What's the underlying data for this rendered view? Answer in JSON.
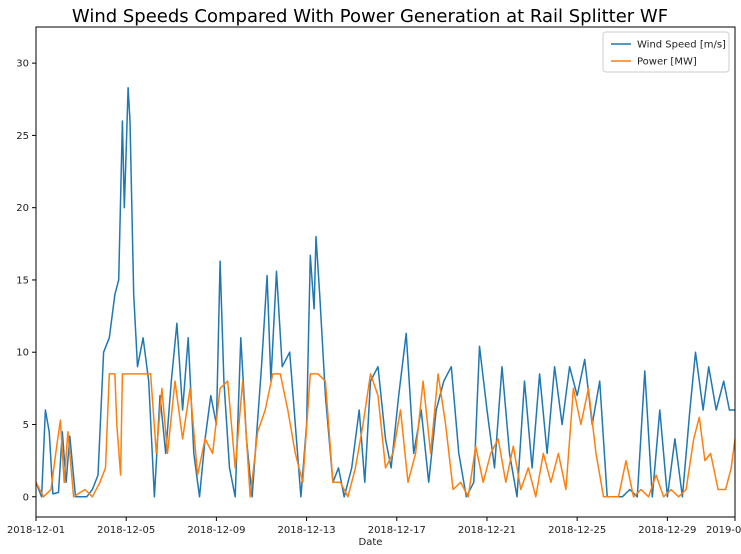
{
  "chart_data": {
    "type": "line",
    "title": "Wind Speeds Compared With Power Generation at Rail Splitter WF",
    "xlabel": "Date",
    "ylabel": "",
    "xlim": [
      "2018-12-01",
      "2019-01-01"
    ],
    "ylim": [
      -1.4,
      32.5
    ],
    "x_ticks": [
      "2018-12-01",
      "2018-12-05",
      "2018-12-09",
      "2018-12-13",
      "2018-12-17",
      "2018-12-21",
      "2018-12-25",
      "2018-12-29",
      "2019-01-01"
    ],
    "y_ticks": [
      0,
      5,
      10,
      15,
      20,
      25,
      30
    ],
    "grid": false,
    "legend": "top-right",
    "colors": {
      "wind": "#1f77b4",
      "power": "#ff7f0e"
    },
    "series": [
      {
        "name": "Wind Speed [m/s]",
        "color": "#1f77b4",
        "points": [
          [
            "2018-12-01 00:00",
            1.0
          ],
          [
            "2018-12-01 06:00",
            0.0
          ],
          [
            "2018-12-01 10:00",
            6.0
          ],
          [
            "2018-12-01 14:00",
            4.5
          ],
          [
            "2018-12-01 18:00",
            0.2
          ],
          [
            "2018-12-02 00:00",
            0.3
          ],
          [
            "2018-12-02 04:00",
            4.5
          ],
          [
            "2018-12-02 08:00",
            1.0
          ],
          [
            "2018-12-02 12:00",
            4.2
          ],
          [
            "2018-12-02 18:00",
            0.0
          ],
          [
            "2018-12-03 06:00",
            0.0
          ],
          [
            "2018-12-03 12:00",
            0.5
          ],
          [
            "2018-12-03 18:00",
            1.5
          ],
          [
            "2018-12-04 00:00",
            10.0
          ],
          [
            "2018-12-04 06:00",
            11.0
          ],
          [
            "2018-12-04 12:00",
            14.0
          ],
          [
            "2018-12-04 16:00",
            15.0
          ],
          [
            "2018-12-04 20:00",
            26.0
          ],
          [
            "2018-12-04 22:00",
            20.0
          ],
          [
            "2018-12-05 00:00",
            24.0
          ],
          [
            "2018-12-05 02:00",
            28.3
          ],
          [
            "2018-12-05 04:00",
            26.0
          ],
          [
            "2018-12-05 08:00",
            14.0
          ],
          [
            "2018-12-05 12:00",
            9.0
          ],
          [
            "2018-12-05 18:00",
            11.0
          ],
          [
            "2018-12-06 00:00",
            8.0
          ],
          [
            "2018-12-06 06:00",
            0.0
          ],
          [
            "2018-12-06 12:00",
            7.0
          ],
          [
            "2018-12-06 18:00",
            3.0
          ],
          [
            "2018-12-07 00:00",
            8.0
          ],
          [
            "2018-12-07 06:00",
            12.0
          ],
          [
            "2018-12-07 12:00",
            6.0
          ],
          [
            "2018-12-07 18:00",
            11.0
          ],
          [
            "2018-12-08 00:00",
            3.0
          ],
          [
            "2018-12-08 06:00",
            0.0
          ],
          [
            "2018-12-08 12:00",
            4.0
          ],
          [
            "2018-12-08 18:00",
            7.0
          ],
          [
            "2018-12-09 00:00",
            5.0
          ],
          [
            "2018-12-09 04:00",
            16.3
          ],
          [
            "2018-12-09 08:00",
            8.0
          ],
          [
            "2018-12-09 14:00",
            2.0
          ],
          [
            "2018-12-09 20:00",
            0.0
          ],
          [
            "2018-12-10 02:00",
            11.0
          ],
          [
            "2018-12-10 08:00",
            4.0
          ],
          [
            "2018-12-10 14:00",
            0.0
          ],
          [
            "2018-12-11 00:00",
            9.0
          ],
          [
            "2018-12-11 06:00",
            15.3
          ],
          [
            "2018-12-11 10:00",
            8.0
          ],
          [
            "2018-12-11 16:00",
            15.6
          ],
          [
            "2018-12-11 22:00",
            9.0
          ],
          [
            "2018-12-12 06:00",
            10.0
          ],
          [
            "2018-12-12 12:00",
            5.0
          ],
          [
            "2018-12-12 18:00",
            0.0
          ],
          [
            "2018-12-13 00:00",
            5.0
          ],
          [
            "2018-12-13 04:00",
            16.7
          ],
          [
            "2018-12-13 08:00",
            13.0
          ],
          [
            "2018-12-13 10:00",
            18.0
          ],
          [
            "2018-12-13 14:00",
            14.0
          ],
          [
            "2018-12-13 20:00",
            7.0
          ],
          [
            "2018-12-14 04:00",
            1.0
          ],
          [
            "2018-12-14 10:00",
            2.0
          ],
          [
            "2018-12-14 16:00",
            0.0
          ],
          [
            "2018-12-15 00:00",
            2.0
          ],
          [
            "2018-12-15 08:00",
            6.0
          ],
          [
            "2018-12-15 14:00",
            1.0
          ],
          [
            "2018-12-15 20:00",
            8.0
          ],
          [
            "2018-12-16 04:00",
            9.0
          ],
          [
            "2018-12-16 12:00",
            4.0
          ],
          [
            "2018-12-16 18:00",
            2.0
          ],
          [
            "2018-12-17 02:00",
            7.0
          ],
          [
            "2018-12-17 10:00",
            11.3
          ],
          [
            "2018-12-17 18:00",
            3.0
          ],
          [
            "2018-12-18 02:00",
            6.0
          ],
          [
            "2018-12-18 10:00",
            1.0
          ],
          [
            "2018-12-18 18:00",
            6.0
          ],
          [
            "2018-12-19 02:00",
            8.0
          ],
          [
            "2018-12-19 10:00",
            9.0
          ],
          [
            "2018-12-19 18:00",
            3.0
          ],
          [
            "2018-12-20 02:00",
            0.0
          ],
          [
            "2018-12-20 10:00",
            1.0
          ],
          [
            "2018-12-20 16:00",
            10.4
          ],
          [
            "2018-12-21 00:00",
            6.0
          ],
          [
            "2018-12-21 08:00",
            2.0
          ],
          [
            "2018-12-21 16:00",
            9.0
          ],
          [
            "2018-12-22 00:00",
            3.0
          ],
          [
            "2018-12-22 08:00",
            0.0
          ],
          [
            "2018-12-22 16:00",
            8.0
          ],
          [
            "2018-12-23 00:00",
            2.0
          ],
          [
            "2018-12-23 08:00",
            8.5
          ],
          [
            "2018-12-23 16:00",
            3.0
          ],
          [
            "2018-12-24 00:00",
            9.0
          ],
          [
            "2018-12-24 08:00",
            5.0
          ],
          [
            "2018-12-24 16:00",
            9.0
          ],
          [
            "2018-12-25 00:00",
            7.0
          ],
          [
            "2018-12-25 08:00",
            9.5
          ],
          [
            "2018-12-25 16:00",
            5.0
          ],
          [
            "2018-12-26 00:00",
            8.0
          ],
          [
            "2018-12-26 08:00",
            0.0
          ],
          [
            "2018-12-26 16:00",
            0.0
          ],
          [
            "2018-12-27 00:00",
            0.0
          ],
          [
            "2018-12-27 08:00",
            0.5
          ],
          [
            "2018-12-27 16:00",
            0.0
          ],
          [
            "2018-12-28 00:00",
            8.7
          ],
          [
            "2018-12-28 08:00",
            0.0
          ],
          [
            "2018-12-28 16:00",
            6.0
          ],
          [
            "2018-12-29 00:00",
            0.0
          ],
          [
            "2018-12-29 08:00",
            4.0
          ],
          [
            "2018-12-29 16:00",
            0.0
          ],
          [
            "2018-12-30 00:00",
            6.0
          ],
          [
            "2018-12-30 06:00",
            10.0
          ],
          [
            "2018-12-30 14:00",
            6.0
          ],
          [
            "2018-12-30 20:00",
            9.0
          ],
          [
            "2018-12-31 04:00",
            6.0
          ],
          [
            "2018-12-31 12:00",
            8.0
          ],
          [
            "2018-12-31 18:00",
            6.0
          ],
          [
            "2019-01-01 00:00",
            6.0
          ]
        ]
      },
      {
        "name": "Power [MW]",
        "color": "#ff7f0e",
        "points": [
          [
            "2018-12-01 00:00",
            1.0
          ],
          [
            "2018-12-01 08:00",
            0.0
          ],
          [
            "2018-12-01 16:00",
            0.5
          ],
          [
            "2018-12-01 22:00",
            3.5
          ],
          [
            "2018-12-02 02:00",
            5.3
          ],
          [
            "2018-12-02 06:00",
            1.0
          ],
          [
            "2018-12-02 10:00",
            4.5
          ],
          [
            "2018-12-02 16:00",
            0.0
          ],
          [
            "2018-12-03 04:00",
            0.5
          ],
          [
            "2018-12-03 12:00",
            0.0
          ],
          [
            "2018-12-03 20:00",
            1.0
          ],
          [
            "2018-12-04 02:00",
            2.0
          ],
          [
            "2018-12-04 06:00",
            8.5
          ],
          [
            "2018-12-04 12:00",
            8.5
          ],
          [
            "2018-12-04 14:00",
            5.0
          ],
          [
            "2018-12-04 18:00",
            1.5
          ],
          [
            "2018-12-04 20:00",
            8.5
          ],
          [
            "2018-12-05 04:00",
            8.5
          ],
          [
            "2018-12-05 12:00",
            8.5
          ],
          [
            "2018-12-05 20:00",
            8.5
          ],
          [
            "2018-12-06 02:00",
            8.5
          ],
          [
            "2018-12-06 08:00",
            3.0
          ],
          [
            "2018-12-06 14:00",
            7.5
          ],
          [
            "2018-12-06 20:00",
            3.0
          ],
          [
            "2018-12-07 04:00",
            8.0
          ],
          [
            "2018-12-07 12:00",
            4.0
          ],
          [
            "2018-12-07 20:00",
            7.5
          ],
          [
            "2018-12-08 04:00",
            1.5
          ],
          [
            "2018-12-08 12:00",
            4.0
          ],
          [
            "2018-12-08 20:00",
            3.0
          ],
          [
            "2018-12-09 04:00",
            7.5
          ],
          [
            "2018-12-09 12:00",
            8.0
          ],
          [
            "2018-12-09 20:00",
            2.0
          ],
          [
            "2018-12-10 04:00",
            8.0
          ],
          [
            "2018-12-10 12:00",
            0.0
          ],
          [
            "2018-12-10 20:00",
            4.5
          ],
          [
            "2018-12-11 04:00",
            6.0
          ],
          [
            "2018-12-11 12:00",
            8.5
          ],
          [
            "2018-12-11 20:00",
            8.5
          ],
          [
            "2018-12-12 04:00",
            6.0
          ],
          [
            "2018-12-12 12:00",
            3.0
          ],
          [
            "2018-12-12 20:00",
            1.0
          ],
          [
            "2018-12-13 04:00",
            8.5
          ],
          [
            "2018-12-13 12:00",
            8.5
          ],
          [
            "2018-12-13 20:00",
            8.0
          ],
          [
            "2018-12-14 04:00",
            1.0
          ],
          [
            "2018-12-14 12:00",
            1.0
          ],
          [
            "2018-12-14 20:00",
            0.0
          ],
          [
            "2018-12-15 04:00",
            2.0
          ],
          [
            "2018-12-15 12:00",
            5.0
          ],
          [
            "2018-12-15 20:00",
            8.5
          ],
          [
            "2018-12-16 04:00",
            7.0
          ],
          [
            "2018-12-16 12:00",
            2.0
          ],
          [
            "2018-12-16 20:00",
            3.0
          ],
          [
            "2018-12-17 04:00",
            6.0
          ],
          [
            "2018-12-17 12:00",
            1.0
          ],
          [
            "2018-12-17 20:00",
            3.0
          ],
          [
            "2018-12-18 04:00",
            8.0
          ],
          [
            "2018-12-18 12:00",
            3.0
          ],
          [
            "2018-12-18 20:00",
            8.5
          ],
          [
            "2018-12-19 04:00",
            5.0
          ],
          [
            "2018-12-19 12:00",
            0.5
          ],
          [
            "2018-12-19 20:00",
            1.0
          ],
          [
            "2018-12-20 04:00",
            0.0
          ],
          [
            "2018-12-20 12:00",
            3.5
          ],
          [
            "2018-12-20 20:00",
            1.0
          ],
          [
            "2018-12-21 04:00",
            3.0
          ],
          [
            "2018-12-21 12:00",
            4.0
          ],
          [
            "2018-12-21 20:00",
            1.0
          ],
          [
            "2018-12-22 04:00",
            3.5
          ],
          [
            "2018-12-22 12:00",
            0.5
          ],
          [
            "2018-12-22 20:00",
            2.0
          ],
          [
            "2018-12-23 04:00",
            0.0
          ],
          [
            "2018-12-23 12:00",
            3.0
          ],
          [
            "2018-12-23 20:00",
            1.0
          ],
          [
            "2018-12-24 04:00",
            3.0
          ],
          [
            "2018-12-24 12:00",
            0.5
          ],
          [
            "2018-12-24 20:00",
            7.5
          ],
          [
            "2018-12-25 04:00",
            5.0
          ],
          [
            "2018-12-25 12:00",
            7.5
          ],
          [
            "2018-12-25 20:00",
            3.0
          ],
          [
            "2018-12-26 04:00",
            0.0
          ],
          [
            "2018-12-26 12:00",
            0.0
          ],
          [
            "2018-12-26 20:00",
            0.0
          ],
          [
            "2018-12-27 04:00",
            2.5
          ],
          [
            "2018-12-27 12:00",
            0.0
          ],
          [
            "2018-12-27 20:00",
            0.5
          ],
          [
            "2018-12-28 04:00",
            0.0
          ],
          [
            "2018-12-28 12:00",
            1.5
          ],
          [
            "2018-12-28 20:00",
            0.0
          ],
          [
            "2018-12-29 04:00",
            0.5
          ],
          [
            "2018-12-29 12:00",
            0.0
          ],
          [
            "2018-12-29 20:00",
            0.5
          ],
          [
            "2018-12-30 04:00",
            4.0
          ],
          [
            "2018-12-30 10:00",
            5.5
          ],
          [
            "2018-12-30 16:00",
            2.5
          ],
          [
            "2018-12-30 22:00",
            3.0
          ],
          [
            "2018-12-31 06:00",
            0.5
          ],
          [
            "2018-12-31 14:00",
            0.5
          ],
          [
            "2018-12-31 20:00",
            2.0
          ],
          [
            "2019-01-01 00:00",
            4.0
          ]
        ]
      }
    ]
  }
}
